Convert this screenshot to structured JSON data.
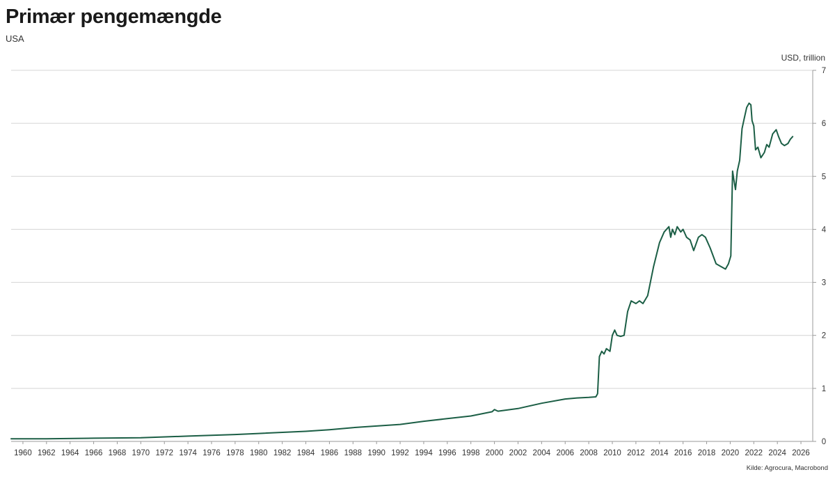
{
  "header": {
    "title": "Primær pengemængde",
    "subtitle": "USA"
  },
  "footer": {
    "source": "Kilde: Agrocura, Macrobond"
  },
  "chart_data": {
    "type": "line",
    "title": "Primær pengemængde",
    "subtitle": "USA",
    "ylabel": "USD, trillion",
    "xlabel": "",
    "ylim": [
      0,
      7
    ],
    "xlim": [
      1959,
      2027
    ],
    "y_ticks": [
      0,
      1,
      2,
      3,
      4,
      5,
      6,
      7
    ],
    "x_ticks": [
      1960,
      1962,
      1964,
      1966,
      1968,
      1970,
      1972,
      1974,
      1976,
      1978,
      1980,
      1982,
      1984,
      1986,
      1988,
      1990,
      1992,
      1994,
      1996,
      1998,
      2000,
      2002,
      2004,
      2006,
      2008,
      2010,
      2012,
      2014,
      2016,
      2018,
      2020,
      2022,
      2024,
      2026
    ],
    "y_axis_side": "right",
    "grid": "horizontal",
    "line_color": "#1b5e45",
    "series": [
      {
        "name": "",
        "x": [
          1959,
          1962,
          1966,
          1970,
          1974,
          1978,
          1980,
          1984,
          1986,
          1988,
          1990,
          1992,
          1994,
          1996,
          1998,
          1999.8,
          2000.0,
          2000.3,
          2002,
          2004,
          2006,
          2007,
          2008.0,
          2008.6,
          2008.75,
          2008.9,
          2009.1,
          2009.3,
          2009.5,
          2009.8,
          2010.0,
          2010.2,
          2010.4,
          2010.7,
          2011.0,
          2011.3,
          2011.6,
          2012.0,
          2012.3,
          2012.6,
          2013.0,
          2013.5,
          2014.0,
          2014.4,
          2014.8,
          2014.95,
          2015.1,
          2015.3,
          2015.5,
          2015.8,
          2016.0,
          2016.3,
          2016.6,
          2016.9,
          2017.3,
          2017.6,
          2017.9,
          2018.3,
          2018.8,
          2019.2,
          2019.6,
          2019.85,
          2020.05,
          2020.2,
          2020.3,
          2020.45,
          2020.6,
          2020.8,
          2021.0,
          2021.2,
          2021.4,
          2021.6,
          2021.75,
          2021.85,
          2022.0,
          2022.15,
          2022.35,
          2022.6,
          2022.9,
          2023.1,
          2023.3,
          2023.6,
          2023.9,
          2024.1,
          2024.35,
          2024.6,
          2024.9,
          2025.1,
          2025.3
        ],
        "values": [
          0.05,
          0.05,
          0.06,
          0.07,
          0.1,
          0.13,
          0.15,
          0.19,
          0.22,
          0.26,
          0.29,
          0.32,
          0.38,
          0.43,
          0.48,
          0.56,
          0.6,
          0.57,
          0.62,
          0.72,
          0.8,
          0.82,
          0.83,
          0.84,
          0.9,
          1.6,
          1.7,
          1.65,
          1.75,
          1.7,
          2.0,
          2.1,
          2.0,
          1.98,
          2.0,
          2.45,
          2.65,
          2.6,
          2.65,
          2.6,
          2.75,
          3.3,
          3.75,
          3.95,
          4.05,
          3.85,
          4.0,
          3.9,
          4.05,
          3.95,
          4.0,
          3.85,
          3.8,
          3.6,
          3.85,
          3.9,
          3.85,
          3.65,
          3.35,
          3.3,
          3.25,
          3.35,
          3.5,
          5.1,
          4.95,
          4.75,
          5.1,
          5.3,
          5.9,
          6.1,
          6.3,
          6.38,
          6.35,
          6.05,
          5.95,
          5.5,
          5.55,
          5.35,
          5.45,
          5.6,
          5.55,
          5.8,
          5.88,
          5.75,
          5.62,
          5.58,
          5.62,
          5.7,
          5.75
        ]
      }
    ]
  }
}
